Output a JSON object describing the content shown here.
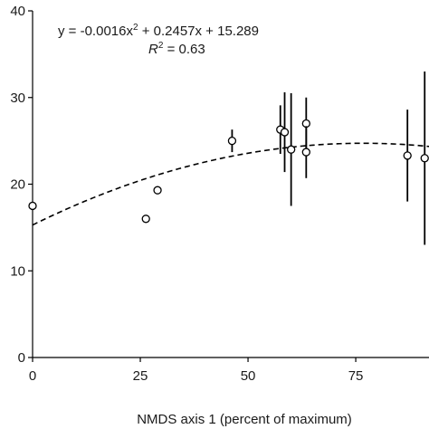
{
  "chart_data": {
    "type": "scatter",
    "title": "",
    "xlabel": "NMDS axis 1 (percent of maximum)",
    "ylabel": "",
    "xlim": [
      0,
      92
    ],
    "ylim": [
      0,
      40
    ],
    "x_ticks": [
      0,
      25,
      50,
      75
    ],
    "y_ticks": [
      0,
      10,
      20,
      30,
      40
    ],
    "grid": false,
    "legend": "none",
    "colors": {
      "axis": "#000000",
      "marker": "#000000",
      "fit": "#000000"
    },
    "equation": {
      "line1_prefix": "y = -0.0016x",
      "line1_sup": "2",
      "line1_suffix": " + 0.2457x + 15.289",
      "r2_label": "R",
      "r2_sup": "2",
      "r2_suffix": " = 0.63"
    },
    "fit": {
      "type": "quadratic",
      "a": -0.0016,
      "b": 0.2457,
      "c": 15.289,
      "style": "dashed"
    },
    "points": [
      {
        "x": 0,
        "y": 17.5
      },
      {
        "x": 26.3,
        "y": 16.0
      },
      {
        "x": 29.0,
        "y": 19.3
      },
      {
        "x": 46.3,
        "y": 25.0,
        "err_low": 1.3,
        "err_high": 1.3
      },
      {
        "x": 57.5,
        "y": 26.3,
        "err_low": 2.8,
        "err_high": 2.8
      },
      {
        "x": 58.5,
        "y": 26.0,
        "err_low": 4.6,
        "err_high": 4.6
      },
      {
        "x": 60.0,
        "y": 24.0,
        "err_low": 6.5,
        "err_high": 6.5
      },
      {
        "x": 63.5,
        "y": 27.0,
        "err_low": 3.0,
        "err_high": 3.0
      },
      {
        "x": 63.5,
        "y": 23.7,
        "err_low": 3.0,
        "err_high": 3.0
      },
      {
        "x": 87.0,
        "y": 23.3,
        "err_low": 5.3,
        "err_high": 5.3
      },
      {
        "x": 91.0,
        "y": 23.0,
        "err_low": 10.0,
        "err_high": 10.0
      }
    ]
  }
}
